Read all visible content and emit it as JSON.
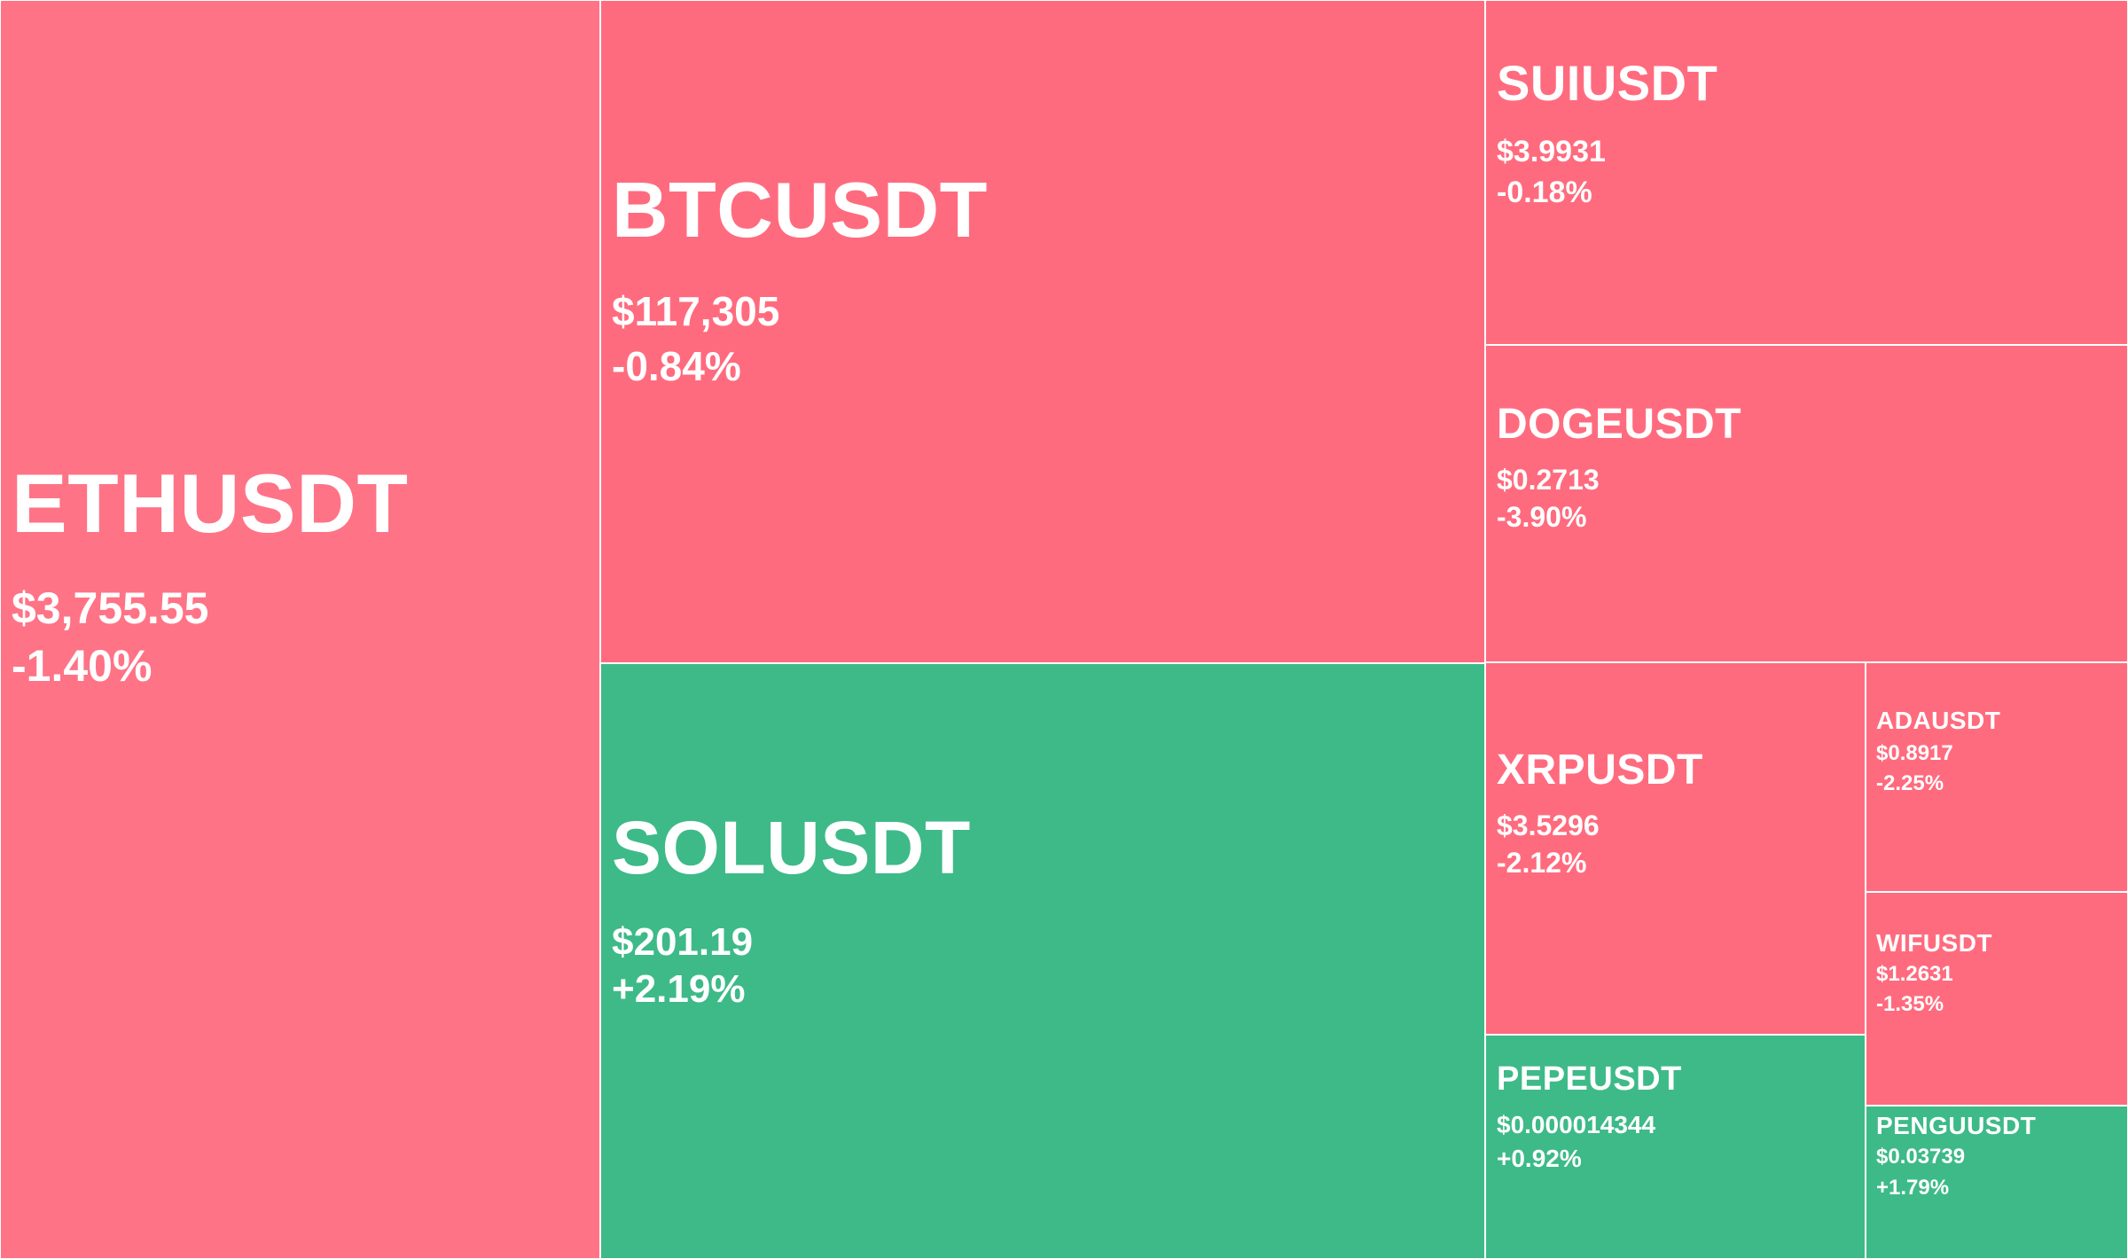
{
  "colors": {
    "down": "#ff6b7e",
    "down_strong": "#ff7386",
    "up": "#3dba88",
    "border": "#ffffff",
    "text": "#ffffff"
  },
  "chart_data": {
    "type": "treemap",
    "title": "",
    "items": [
      {
        "symbol": "ETHUSDT",
        "price": "$3,755.55",
        "change": "-1.40%",
        "change_value": -1.4
      },
      {
        "symbol": "BTCUSDT",
        "price": "$117,305",
        "change": "-0.84%",
        "change_value": -0.84
      },
      {
        "symbol": "SOLUSDT",
        "price": "$201.19",
        "change": "+2.19%",
        "change_value": 2.19
      },
      {
        "symbol": "SUIUSDT",
        "price": "$3.9931",
        "change": "-0.18%",
        "change_value": -0.18
      },
      {
        "symbol": "DOGEUSDT",
        "price": "$0.2713",
        "change": "-3.90%",
        "change_value": -3.9
      },
      {
        "symbol": "XRPUSDT",
        "price": "$3.5296",
        "change": "-2.12%",
        "change_value": -2.12
      },
      {
        "symbol": "ADAUSDT",
        "price": "$0.8917",
        "change": "-2.25%",
        "change_value": -2.25
      },
      {
        "symbol": "WIFUSDT",
        "price": "$1.2631",
        "change": "-1.35%",
        "change_value": -1.35
      },
      {
        "symbol": "PEPEUSDT",
        "price": "$0.000014344",
        "change": "+0.92%",
        "change_value": 0.92
      },
      {
        "symbol": "PENGUUSDT",
        "price": "$0.03739",
        "change": "+1.79%",
        "change_value": 1.79
      }
    ]
  }
}
